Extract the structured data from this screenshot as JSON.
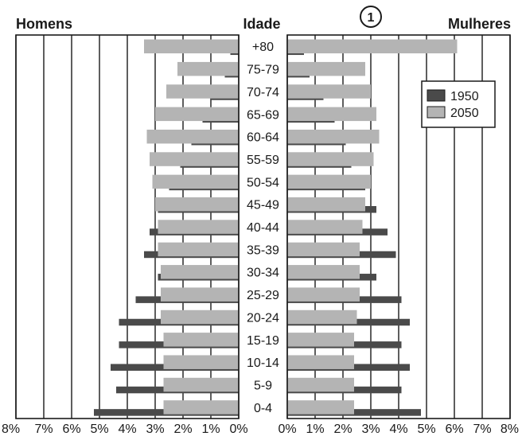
{
  "chart_data": {
    "type": "bar",
    "orientation": "horizontal",
    "layout": "population-pyramid",
    "left_title": "Homens",
    "center_title": "Idade",
    "right_title": "Mulheres",
    "badge": "1",
    "categories": [
      "0-4",
      "5-9",
      "10-14",
      "15-19",
      "20-24",
      "25-29",
      "30-34",
      "35-39",
      "40-44",
      "45-49",
      "50-54",
      "55-59",
      "60-64",
      "65-69",
      "70-74",
      "75-79",
      "+80"
    ],
    "series": [
      {
        "name": "1950",
        "color": "#4a4a4a",
        "men": [
          5.2,
          4.4,
          4.6,
          4.3,
          4.3,
          3.7,
          2.9,
          3.4,
          3.2,
          2.9,
          2.5,
          2.1,
          1.7,
          1.3,
          1.0,
          0.5,
          0.3
        ],
        "women": [
          4.8,
          4.1,
          4.4,
          4.1,
          4.4,
          4.1,
          3.2,
          3.9,
          3.6,
          3.2,
          2.8,
          2.3,
          2.1,
          1.7,
          1.3,
          0.8,
          0.6
        ]
      },
      {
        "name": "2050",
        "color": "#b4b4b4",
        "men": [
          2.7,
          2.7,
          2.7,
          2.7,
          2.8,
          2.8,
          2.8,
          2.9,
          2.9,
          3.0,
          3.1,
          3.2,
          3.3,
          3.0,
          2.6,
          2.2,
          3.4
        ],
        "women": [
          2.4,
          2.4,
          2.4,
          2.4,
          2.5,
          2.6,
          2.6,
          2.6,
          2.7,
          2.8,
          3.0,
          3.1,
          3.3,
          3.2,
          3.0,
          2.8,
          6.1
        ]
      }
    ],
    "x_ticks_left": [
      "8%",
      "7%",
      "6%",
      "5%",
      "4%",
      "3%",
      "2%",
      "1%",
      "0%"
    ],
    "x_ticks_right": [
      "0%",
      "1%",
      "2%",
      "3%",
      "4%",
      "5%",
      "6%",
      "7%",
      "8%"
    ],
    "xlim": [
      0,
      8
    ],
    "x_unit": "%",
    "grid": true,
    "legend_position": "top-right"
  }
}
